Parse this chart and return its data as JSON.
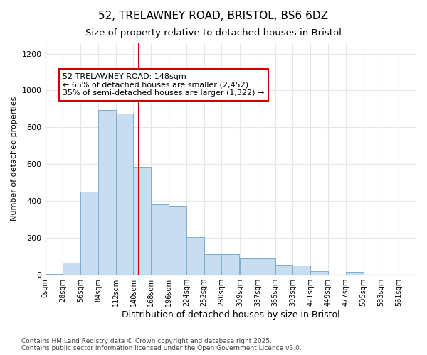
{
  "title_line1": "52, TRELAWNEY ROAD, BRISTOL, BS6 6DZ",
  "title_line2": "Size of property relative to detached houses in Bristol",
  "xlabel": "Distribution of detached houses by size in Bristol",
  "ylabel": "Number of detached properties",
  "bar_color": "#c8ddf0",
  "bar_edgecolor": "#7aaed0",
  "bar_left_edges": [
    0,
    28,
    56,
    84,
    112,
    140,
    168,
    196,
    224,
    252,
    280,
    309,
    337,
    365,
    393,
    421,
    449,
    477,
    505,
    533
  ],
  "bar_heights": [
    5,
    65,
    450,
    893,
    875,
    585,
    380,
    375,
    205,
    113,
    113,
    90,
    90,
    55,
    50,
    20,
    0,
    15,
    0,
    0
  ],
  "bin_width": 28,
  "x_ticks": [
    0,
    28,
    56,
    84,
    112,
    140,
    168,
    196,
    224,
    252,
    280,
    309,
    337,
    365,
    393,
    421,
    449,
    477,
    505,
    533,
    561
  ],
  "x_tick_labels": [
    "0sqm",
    "28sqm",
    "56sqm",
    "84sqm",
    "112sqm",
    "140sqm",
    "168sqm",
    "196sqm",
    "224sqm",
    "252sqm",
    "280sqm",
    "309sqm",
    "337sqm",
    "365sqm",
    "393sqm",
    "421sqm",
    "449sqm",
    "477sqm",
    "505sqm",
    "533sqm",
    "561sqm"
  ],
  "ylim": [
    0,
    1260
  ],
  "xlim": [
    0,
    589
  ],
  "y_ticks": [
    0,
    200,
    400,
    600,
    800,
    1000,
    1200
  ],
  "property_size": 148,
  "annotation_text": "52 TRELAWNEY ROAD: 148sqm\n← 65% of detached houses are smaller (2,452)\n35% of semi-detached houses are larger (1,322) →",
  "vline_color": "#cc0000",
  "annotation_box_facecolor": "#ffffff",
  "annotation_box_edgecolor": "#cc0000",
  "background_color": "#ffffff",
  "grid_color": "#e0e8f0",
  "footer_text": "Contains HM Land Registry data © Crown copyright and database right 2025.\nContains public sector information licensed under the Open Government Licence v3.0.",
  "title_fontsize": 11,
  "subtitle_fontsize": 9.5,
  "tick_fontsize": 7,
  "xlabel_fontsize": 9,
  "ylabel_fontsize": 8,
  "annotation_fontsize": 8,
  "footer_fontsize": 6.5
}
